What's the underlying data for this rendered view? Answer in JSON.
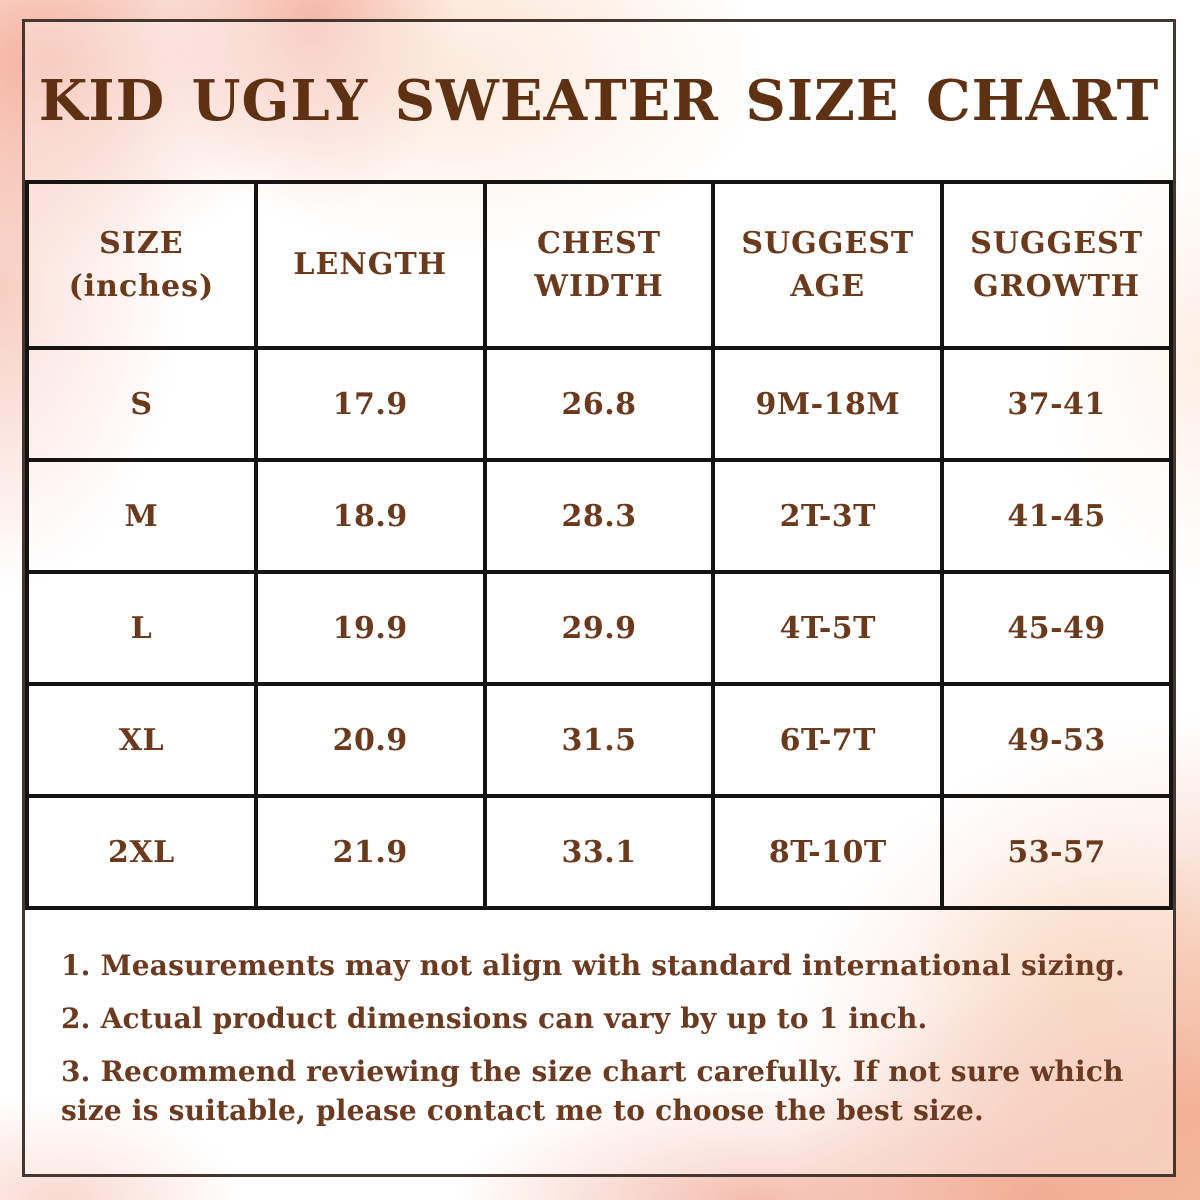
{
  "title": "KID UGLY SWEATER SIZE CHART",
  "chart_data": {
    "type": "table",
    "columns": [
      "SIZE\n(inches)",
      "LENGTH",
      "CHEST\nWIDTH",
      "SUGGEST\nAGE",
      "SUGGEST\nGROWTH"
    ],
    "rows": [
      [
        "S",
        "17.9",
        "26.8",
        "9M-18M",
        "37-41"
      ],
      [
        "M",
        "18.9",
        "28.3",
        "2T-3T",
        "41-45"
      ],
      [
        "L",
        "19.9",
        "29.9",
        "4T-5T",
        "45-49"
      ],
      [
        "XL",
        "20.9",
        "31.5",
        "6T-7T",
        "49-53"
      ],
      [
        "2XL",
        "21.9",
        "33.1",
        "8T-10T",
        "53-57"
      ]
    ]
  },
  "notes": [
    "1. Measurements may not align with standard international sizing.",
    "2. Actual product dimensions can vary by up to 1 inch.",
    "3. Recommend reviewing the size chart carefully. If not sure which size is suitable, please contact me to choose the best size."
  ],
  "colors": {
    "text_brown": "#6B3A1D",
    "title_brown": "#5F3113",
    "table_border": "#161413",
    "frame_border": "#453730",
    "watercolor_pink": "#F2AE9C",
    "watercolor_salmon": "#EEA08A",
    "watercolor_peach": "#FADBC3",
    "watercolor_yellow": "#F9E3BB",
    "background": "#FFFFFF"
  }
}
